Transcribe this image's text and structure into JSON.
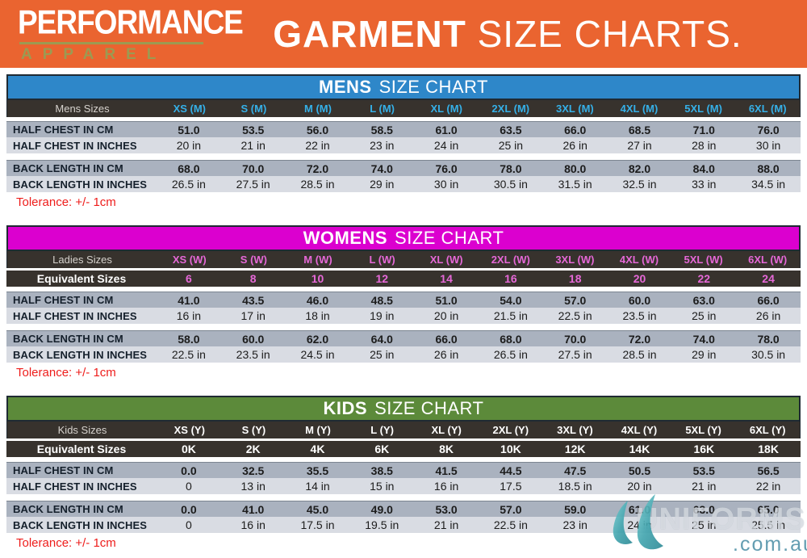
{
  "banner": {
    "brand_line1": "PERFORMANCE",
    "brand_line2": "APPAREL",
    "title_bold": "GARMENT",
    "title_rest": "SIZE CHARTS."
  },
  "colors": {
    "banner_orange": "#ea6430",
    "mens_accent": "#2e87c9",
    "mens_size_text": "#35b0e8",
    "womens_accent": "#db00cf",
    "womens_size_text": "#e668d8",
    "kids_accent": "#5c8a3a",
    "kids_size_text": "#ffffff",
    "dark_row": "#37322d",
    "data_row_dark": "#aab2bf",
    "data_row_light": "#d9dce3",
    "tolerance_red": "#ee1d1b"
  },
  "charts": [
    {
      "id": "mens",
      "title_bold": "MENS",
      "title_rest": "SIZE CHART",
      "accent": "#2e87c9",
      "size_color": "#35b0e8",
      "equiv_color": "#35b0e8",
      "sizes_label": "Mens  Sizes",
      "sizes": [
        "XS (M)",
        "S (M)",
        "M (M)",
        "L (M)",
        "XL (M)",
        "2XL (M)",
        "3XL (M)",
        "4XL (M)",
        "5XL (M)",
        "6XL (M)"
      ],
      "equivalent_label": null,
      "equivalent": null,
      "rows": [
        {
          "label": "HALF CHEST IN CM",
          "values": [
            "51.0",
            "53.5",
            "56.0",
            "58.5",
            "61.0",
            "63.5",
            "66.0",
            "68.5",
            "71.0",
            "76.0"
          ]
        },
        {
          "label": "HALF CHEST IN INCHES",
          "values": [
            "20 in",
            "21 in",
            "22 in",
            "23 in",
            "24 in",
            "25 in",
            "26 in",
            "27 in",
            "28 in",
            "30 in"
          ]
        },
        {
          "label": "BACK LENGTH IN CM",
          "values": [
            "68.0",
            "70.0",
            "72.0",
            "74.0",
            "76.0",
            "78.0",
            "80.0",
            "82.0",
            "84.0",
            "88.0"
          ]
        },
        {
          "label": "BACK LENGTH IN INCHES",
          "values": [
            "26.5 in",
            "27.5 in",
            "28.5 in",
            "29 in",
            "30 in",
            "30.5 in",
            "31.5 in",
            "32.5 in",
            "33 in",
            "34.5 in"
          ]
        }
      ],
      "tolerance": "Tolerance: +/- 1cm"
    },
    {
      "id": "womens",
      "title_bold": "WOMENS",
      "title_rest": "SIZE CHART",
      "accent": "#db00cf",
      "size_color": "#e668d8",
      "equiv_color": "#e668d8",
      "sizes_label": "Ladies  Sizes",
      "sizes": [
        "XS  (W)",
        "S  (W)",
        "M  (W)",
        "L  (W)",
        "XL  (W)",
        "2XL  (W)",
        "3XL  (W)",
        "4XL  (W)",
        "5XL  (W)",
        "6XL  (W)"
      ],
      "equivalent_label": "Equivalent Sizes",
      "equivalent": [
        "6",
        "8",
        "10",
        "12",
        "14",
        "16",
        "18",
        "20",
        "22",
        "24"
      ],
      "rows": [
        {
          "label": "HALF CHEST IN CM",
          "values": [
            "41.0",
            "43.5",
            "46.0",
            "48.5",
            "51.0",
            "54.0",
            "57.0",
            "60.0",
            "63.0",
            "66.0"
          ]
        },
        {
          "label": "HALF CHEST IN INCHES",
          "values": [
            "16 in",
            "17 in",
            "18 in",
            "19 in",
            "20 in",
            "21.5 in",
            "22.5 in",
            "23.5 in",
            "25 in",
            "26 in"
          ]
        },
        {
          "label": "BACK LENGTH IN CM",
          "values": [
            "58.0",
            "60.0",
            "62.0",
            "64.0",
            "66.0",
            "68.0",
            "70.0",
            "72.0",
            "74.0",
            "78.0"
          ]
        },
        {
          "label": "BACK LENGTH IN INCHES",
          "values": [
            "22.5 in",
            "23.5 in",
            "24.5 in",
            "25 in",
            "26 in",
            "26.5 in",
            "27.5 in",
            "28.5 in",
            "29 in",
            "30.5 in"
          ]
        }
      ],
      "tolerance": "Tolerance: +/- 1cm"
    },
    {
      "id": "kids",
      "title_bold": "KIDS",
      "title_rest": "SIZE CHART",
      "accent": "#5c8a3a",
      "size_color": "#ffffff",
      "equiv_color": "#ffffff",
      "sizes_label": "Kids  Sizes",
      "sizes": [
        "XS (Y)",
        "S (Y)",
        "M (Y)",
        "L (Y)",
        "XL (Y)",
        "2XL (Y)",
        "3XL (Y)",
        "4XL (Y)",
        "5XL (Y)",
        "6XL (Y)"
      ],
      "equivalent_label": "Equivalent Sizes",
      "equivalent": [
        "0K",
        "2K",
        "4K",
        "6K",
        "8K",
        "10K",
        "12K",
        "14K",
        "16K",
        "18K"
      ],
      "rows": [
        {
          "label": "HALF CHEST IN CM",
          "values": [
            "0.0",
            "32.5",
            "35.5",
            "38.5",
            "41.5",
            "44.5",
            "47.5",
            "50.5",
            "53.5",
            "56.5"
          ]
        },
        {
          "label": "HALF CHEST IN INCHES",
          "values": [
            "0",
            "13 in",
            "14 in",
            "15 in",
            "16 in",
            "17.5",
            "18.5 in",
            "20 in",
            "21 in",
            "22 in"
          ]
        },
        {
          "label": "BACK LENGTH IN CM",
          "values": [
            "0.0",
            "41.0",
            "45.0",
            "49.0",
            "53.0",
            "57.0",
            "59.0",
            "61.0",
            "63.0",
            "65.0"
          ]
        },
        {
          "label": "BACK LENGTH IN INCHES",
          "values": [
            "0",
            "16 in",
            "17.5 in",
            "19.5 in",
            "21 in",
            "22.5 in",
            "23 in",
            "24 in",
            "25 in",
            "25.5 in"
          ]
        }
      ],
      "tolerance": "Tolerance: +/- 1cm"
    }
  ],
  "watermark": {
    "text": "UNIFORMS",
    "suffix": ".com.au"
  }
}
